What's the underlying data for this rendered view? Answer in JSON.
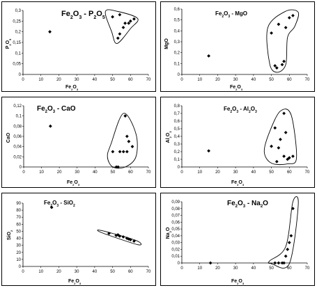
{
  "chart_data": [
    {
      "type": "scatter",
      "title": "Fe2O3 - P2O5",
      "title_parts": [
        [
          "Fe",
          ""
        ],
        [
          "2",
          "sub"
        ],
        [
          "O",
          ""
        ],
        [
          "3",
          "sub"
        ],
        [
          " - P",
          ""
        ],
        [
          "2",
          "sub"
        ],
        [
          "O",
          ""
        ],
        [
          "5",
          "sub"
        ]
      ],
      "xlabel_parts": [
        [
          "Fe",
          ""
        ],
        [
          "2",
          "sub"
        ],
        [
          "O",
          ""
        ],
        [
          "3",
          "sub"
        ]
      ],
      "ylabel_parts": [
        [
          "P",
          ""
        ],
        [
          "2",
          "sub"
        ],
        [
          "O",
          ""
        ],
        [
          "5",
          "sub"
        ]
      ],
      "xlim": [
        0,
        70
      ],
      "ylim": [
        0,
        0.3
      ],
      "xticks": [
        "0",
        "10",
        "20",
        "30",
        "40",
        "50",
        "60",
        "70"
      ],
      "yticks": [
        "0",
        "0,05",
        "0,1",
        "0,15",
        "0,2",
        "0,25",
        "0,3"
      ],
      "points": [
        [
          15,
          0.2
        ],
        [
          50,
          0.27
        ],
        [
          53,
          0.17
        ],
        [
          54,
          0.19
        ],
        [
          54,
          0.28
        ],
        [
          56,
          0.22
        ],
        [
          57,
          0.24
        ],
        [
          59,
          0.24
        ],
        [
          60,
          0.25
        ],
        [
          62,
          0.26
        ]
      ],
      "envelope": [
        [
          46,
          0.295
        ],
        [
          53,
          0.295
        ],
        [
          64,
          0.262
        ],
        [
          60,
          0.215
        ],
        [
          52.5,
          0.145
        ],
        [
          49.5,
          0.2
        ]
      ],
      "legend": "none",
      "grid": false
    },
    {
      "type": "scatter",
      "title": "Fe2O3 - MgO",
      "title_parts": [
        [
          "Fe",
          ""
        ],
        [
          "2",
          "sub"
        ],
        [
          "O",
          ""
        ],
        [
          "3",
          "sub"
        ],
        [
          " - MgO",
          ""
        ]
      ],
      "xlabel_parts": [
        [
          "Fe",
          ""
        ],
        [
          "2",
          "sub"
        ],
        [
          "O",
          ""
        ],
        [
          "3",
          "sub"
        ]
      ],
      "ylabel_parts": [
        [
          "MgO",
          ""
        ]
      ],
      "xlim": [
        0,
        70
      ],
      "ylim": [
        0,
        0.6
      ],
      "xticks": [
        "0",
        "10",
        "20",
        "30",
        "40",
        "50",
        "60",
        "70"
      ],
      "yticks": [
        "0",
        "0,1",
        "0,2",
        "0,3",
        "0,4",
        "0,5",
        "0,6"
      ],
      "points": [
        [
          15,
          0.17
        ],
        [
          50,
          0.38
        ],
        [
          52,
          0.08
        ],
        [
          53,
          0.06
        ],
        [
          54,
          0.46
        ],
        [
          56,
          0.09
        ],
        [
          57,
          0.12
        ],
        [
          58,
          0.43
        ],
        [
          60,
          0.52
        ],
        [
          62,
          0.54
        ]
      ],
      "envelope": [
        [
          48,
          0.43
        ],
        [
          58,
          0.58
        ],
        [
          65,
          0.57
        ],
        [
          63,
          0.44
        ],
        [
          59,
          0.34
        ],
        [
          58,
          0.09
        ],
        [
          53,
          0.02
        ],
        [
          49,
          0.1
        ]
      ],
      "legend": "none",
      "grid": false
    },
    {
      "type": "scatter",
      "title": "Fe2O3 - CaO",
      "title_parts": [
        [
          "Fe",
          ""
        ],
        [
          "2",
          "sub"
        ],
        [
          "O",
          ""
        ],
        [
          "3",
          "sub"
        ],
        [
          " - CaO",
          ""
        ]
      ],
      "xlabel_parts": [
        [
          "Fe",
          ""
        ],
        [
          "2",
          "sub"
        ],
        [
          "O",
          ""
        ],
        [
          "3",
          "sub"
        ]
      ],
      "ylabel_parts": [
        [
          "CaO",
          ""
        ]
      ],
      "xlim": [
        0,
        70
      ],
      "ylim": [
        0,
        0.12
      ],
      "xticks": [
        "0",
        "10",
        "20",
        "30",
        "40",
        "50",
        "60",
        "70"
      ],
      "yticks": [
        "0",
        "0,02",
        "0,04",
        "0,06",
        "0,08",
        "0,1",
        "0,12"
      ],
      "points": [
        [
          15,
          0.08
        ],
        [
          50,
          0.03
        ],
        [
          52,
          0.0
        ],
        [
          53,
          0.0
        ],
        [
          54,
          0.03
        ],
        [
          56,
          0.03
        ],
        [
          57,
          0.1
        ],
        [
          58,
          0.03
        ],
        [
          58,
          0.06
        ],
        [
          59,
          0.05
        ],
        [
          61,
          0.04
        ]
      ],
      "envelope": [
        [
          56,
          0.105
        ],
        [
          63,
          0.065
        ],
        [
          63,
          0.02
        ],
        [
          57,
          0.0
        ],
        [
          50,
          0.0
        ],
        [
          47,
          0.02
        ],
        [
          49,
          0.045
        ]
      ],
      "legend": "none",
      "grid": false
    },
    {
      "type": "scatter",
      "title": "Fe2O3 - Al2O3",
      "title_parts": [
        [
          "Fe",
          ""
        ],
        [
          "2",
          "sub"
        ],
        [
          "O",
          ""
        ],
        [
          "3",
          "sub"
        ],
        [
          " - Al",
          ""
        ],
        [
          "2",
          "sub"
        ],
        [
          "O",
          ""
        ],
        [
          "3",
          "sub"
        ]
      ],
      "xlabel_parts": [
        [
          "Fe",
          ""
        ],
        [
          "2",
          "sub"
        ],
        [
          "O",
          ""
        ],
        [
          "3",
          "sub"
        ]
      ],
      "ylabel_parts": [
        [
          "Al",
          ""
        ],
        [
          "2",
          "sub"
        ],
        [
          "O",
          ""
        ],
        [
          "3",
          "sub"
        ]
      ],
      "xlim": [
        0,
        70
      ],
      "ylim": [
        0,
        0.8
      ],
      "xticks": [
        "0",
        "10",
        "20",
        "30",
        "40",
        "50",
        "60",
        "70"
      ],
      "yticks": [
        "0",
        "0,1",
        "0,2",
        "0,3",
        "0,4",
        "0,5",
        "0,6",
        "0,7",
        "0,8"
      ],
      "points": [
        [
          15,
          0.21
        ],
        [
          50,
          0.27
        ],
        [
          52,
          0.51
        ],
        [
          53,
          0.07
        ],
        [
          54,
          0.25
        ],
        [
          55,
          0.36
        ],
        [
          57,
          0.14
        ],
        [
          57,
          0.7
        ],
        [
          58,
          0.45
        ],
        [
          59,
          0.1
        ],
        [
          60,
          0.12
        ],
        [
          62,
          0.14
        ]
      ],
      "envelope": [
        [
          55,
          0.73
        ],
        [
          61,
          0.68
        ],
        [
          64,
          0.12
        ],
        [
          59,
          0.04
        ],
        [
          50,
          0.05
        ],
        [
          46,
          0.2
        ],
        [
          49,
          0.46
        ]
      ],
      "legend": "none",
      "grid": false
    },
    {
      "type": "scatter",
      "title": "Fe2O3 - SiO2",
      "title_parts": [
        [
          "Fe",
          ""
        ],
        [
          "2",
          "sub"
        ],
        [
          "O",
          ""
        ],
        [
          "3",
          "sub"
        ],
        [
          " - SiO",
          ""
        ],
        [
          "2",
          "sub"
        ]
      ],
      "xlabel_parts": [
        [
          "Fe",
          ""
        ],
        [
          "2",
          "sub"
        ],
        [
          "O",
          ""
        ],
        [
          "3",
          "sub"
        ]
      ],
      "ylabel_parts": [
        [
          "SiO",
          ""
        ],
        [
          "2",
          "sub"
        ]
      ],
      "xlim": [
        0,
        70
      ],
      "ylim": [
        0,
        90
      ],
      "xticks": [
        "0",
        "10",
        "20",
        "30",
        "40",
        "50",
        "60",
        "70"
      ],
      "yticks": [
        "0",
        "10",
        "20",
        "30",
        "40",
        "50",
        "60",
        "70",
        "80",
        "90"
      ],
      "points": [
        [
          16,
          84
        ],
        [
          48,
          47
        ],
        [
          52,
          44
        ],
        [
          53,
          45
        ],
        [
          54,
          43
        ],
        [
          56,
          42
        ],
        [
          58,
          40
        ],
        [
          59,
          39
        ],
        [
          60,
          38
        ],
        [
          62,
          36
        ]
      ],
      "envelope": [
        [
          44,
          51
        ],
        [
          63,
          37
        ],
        [
          64,
          31
        ],
        [
          44,
          48
        ]
      ],
      "legend": "none",
      "grid": false
    },
    {
      "type": "scatter",
      "title": "Fe2O3 - Na2O",
      "title_parts": [
        [
          "Fe",
          ""
        ],
        [
          "2",
          "sub"
        ],
        [
          "O",
          ""
        ],
        [
          "3",
          "sub"
        ],
        [
          " - Na",
          ""
        ],
        [
          "2",
          "sub"
        ],
        [
          "O",
          ""
        ]
      ],
      "xlabel_parts": [
        [
          "Fe",
          ""
        ],
        [
          "2",
          "sub"
        ],
        [
          "O",
          ""
        ],
        [
          "3",
          "sub"
        ]
      ],
      "ylabel_parts": [
        [
          "Na",
          ""
        ],
        [
          "2",
          "sub"
        ],
        [
          "O",
          ""
        ]
      ],
      "xlim": [
        0,
        70
      ],
      "ylim": [
        0,
        0.09
      ],
      "xticks": [
        "0",
        "10",
        "20",
        "30",
        "40",
        "50",
        "60",
        "70"
      ],
      "yticks": [
        "0",
        "0,01",
        "0,02",
        "0,03",
        "0,04",
        "0,05",
        "0,06",
        "0,07",
        "0,08",
        "0,09"
      ],
      "points": [
        [
          16,
          0.0
        ],
        [
          52,
          0.0
        ],
        [
          54,
          0.0
        ],
        [
          56,
          0.0
        ],
        [
          57,
          0.0
        ],
        [
          58,
          0.01
        ],
        [
          59,
          0.02
        ],
        [
          60,
          0.03
        ],
        [
          61,
          0.04
        ],
        [
          62,
          0.08
        ]
      ],
      "envelope": [
        [
          49,
          0.003
        ],
        [
          58,
          0.024
        ],
        [
          62,
          0.09
        ],
        [
          65,
          0.086
        ],
        [
          60,
          -0.001
        ],
        [
          50,
          -0.001
        ]
      ],
      "legend": "none",
      "grid": false
    }
  ]
}
